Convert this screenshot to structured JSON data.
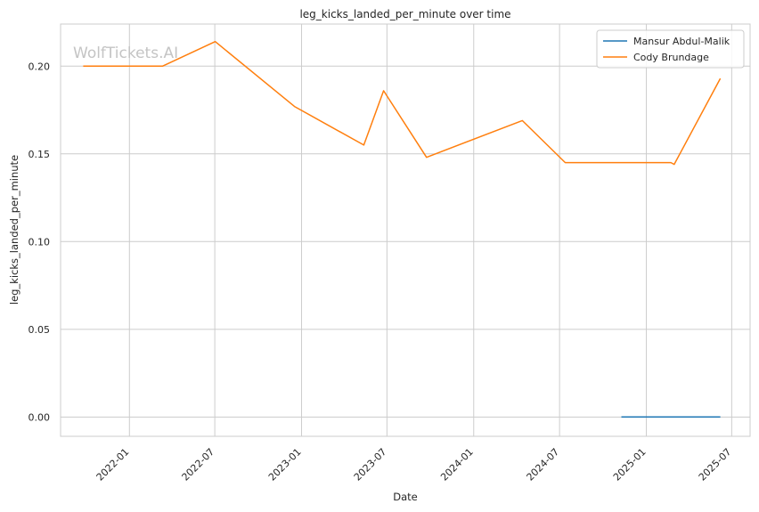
{
  "chart_data": {
    "type": "line",
    "title": "leg_kicks_landed_per_minute over time",
    "xlabel": "Date",
    "ylabel": "leg_kicks_landed_per_minute",
    "watermark": "WolfTickets.AI",
    "xlim": [
      "2021-08-08",
      "2025-08-09"
    ],
    "ylim": [
      -0.011,
      0.224
    ],
    "x_ticks": [
      "2022-01",
      "2022-07",
      "2023-01",
      "2023-07",
      "2024-01",
      "2024-07",
      "2025-01",
      "2025-07"
    ],
    "y_ticks": [
      "0.00",
      "0.05",
      "0.10",
      "0.15",
      "0.20"
    ],
    "y_tick_values": [
      0.0,
      0.05,
      0.1,
      0.15,
      0.2
    ],
    "grid": true,
    "legend_position": "top-right",
    "series": [
      {
        "name": "Mansur Abdul-Malik",
        "color": "#1f77b4",
        "points": [
          {
            "x": "2024-11-09",
            "y": 0.0
          },
          {
            "x": "2025-06-07",
            "y": 0.0
          }
        ]
      },
      {
        "name": "Cody Brundage",
        "color": "#ff7f0e",
        "points": [
          {
            "x": "2021-09-25",
            "y": 0.2
          },
          {
            "x": "2022-03-12",
            "y": 0.2
          },
          {
            "x": "2022-07-02",
            "y": 0.214
          },
          {
            "x": "2022-12-17",
            "y": 0.177
          },
          {
            "x": "2023-05-13",
            "y": 0.155
          },
          {
            "x": "2023-06-24",
            "y": 0.186
          },
          {
            "x": "2023-09-23",
            "y": 0.148
          },
          {
            "x": "2024-04-13",
            "y": 0.169
          },
          {
            "x": "2024-07-13",
            "y": 0.145
          },
          {
            "x": "2025-02-22",
            "y": 0.145
          },
          {
            "x": "2025-03-01",
            "y": 0.144
          },
          {
            "x": "2025-06-07",
            "y": 0.193
          }
        ]
      }
    ]
  }
}
